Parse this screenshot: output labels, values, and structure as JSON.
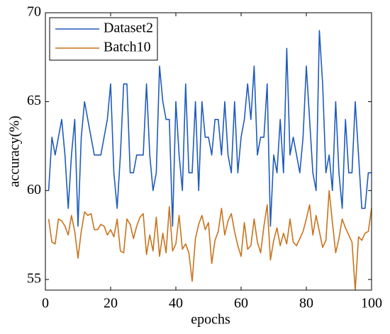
{
  "chart_data": {
    "type": "line",
    "xlabel": "epochs",
    "ylabel": "accuracy(%)",
    "x": [
      1,
      2,
      3,
      4,
      5,
      6,
      7,
      8,
      9,
      10,
      11,
      12,
      13,
      14,
      15,
      16,
      17,
      18,
      19,
      20,
      21,
      22,
      23,
      24,
      25,
      26,
      27,
      28,
      29,
      30,
      31,
      32,
      33,
      34,
      35,
      36,
      37,
      38,
      39,
      40,
      41,
      42,
      43,
      44,
      45,
      46,
      47,
      48,
      49,
      50,
      51,
      52,
      53,
      54,
      55,
      56,
      57,
      58,
      59,
      60,
      61,
      62,
      63,
      64,
      65,
      66,
      67,
      68,
      69,
      70,
      71,
      72,
      73,
      74,
      75,
      76,
      77,
      78,
      79,
      80,
      81,
      82,
      83,
      84,
      85,
      86,
      87,
      88,
      89,
      90,
      91,
      92,
      93,
      94,
      95,
      96,
      97,
      98,
      99,
      100
    ],
    "series": [
      {
        "name": "Dataset2",
        "color": "#1f5bbd",
        "values": [
          60,
          63,
          62,
          63,
          64,
          62,
          59,
          62,
          64,
          58,
          63,
          65,
          64,
          63,
          62,
          62,
          62,
          63,
          64,
          66,
          61,
          59,
          62,
          66,
          66,
          61,
          61,
          62,
          62,
          62,
          66,
          62,
          60,
          61,
          67,
          65,
          64,
          64,
          58,
          65,
          62,
          60,
          66,
          61,
          61,
          65,
          60,
          65,
          63,
          63,
          62,
          64,
          64,
          62,
          65,
          62,
          61,
          65,
          61,
          63,
          64,
          66,
          64,
          67,
          62,
          63,
          63,
          66,
          58,
          62,
          61,
          64,
          61,
          68,
          62,
          63,
          62,
          61,
          63,
          67,
          64,
          61,
          60,
          69,
          66,
          61,
          62,
          60,
          65,
          61,
          59,
          64,
          61,
          61,
          65,
          62,
          59,
          59,
          61,
          61
        ]
      },
      {
        "name": "Batch10",
        "color": "#c9731d",
        "values": [
          58.4,
          57.1,
          57.0,
          58.4,
          58.3,
          58.0,
          57.5,
          58.6,
          57.7,
          56.2,
          57.7,
          58.8,
          58.6,
          58.7,
          57.8,
          57.8,
          58.1,
          58.0,
          57.5,
          57.8,
          57.4,
          58.4,
          56.6,
          56.5,
          58.4,
          58.1,
          57.3,
          58.0,
          58.5,
          58.7,
          56.4,
          57.5,
          56.6,
          58.5,
          56.3,
          57.6,
          56.5,
          59.1,
          56.6,
          57.0,
          58.6,
          56.7,
          57.0,
          56.5,
          54.9,
          57.3,
          58.1,
          58.6,
          57.8,
          58.2,
          55.9,
          57.2,
          57.7,
          59.0,
          57.5,
          58.3,
          58.7,
          57.7,
          56.9,
          56.3,
          58.2,
          56.7,
          56.9,
          58.4,
          57.1,
          56.5,
          58.0,
          59.2,
          56.1,
          57.2,
          57.9,
          56.9,
          57.6,
          57.0,
          58.4,
          57.1,
          56.9,
          57.3,
          57.7,
          58.4,
          59.2,
          57.5,
          58.6,
          57.7,
          56.8,
          57.2,
          60.0,
          58.2,
          56.5,
          57.3,
          58.4,
          57.9,
          57.5,
          57.1,
          54.4,
          57.4,
          57.2,
          57.6,
          57.7,
          59.0
        ]
      }
    ],
    "xlim": [
      0,
      100
    ],
    "xticks": [
      0,
      20,
      40,
      60,
      80,
      100
    ],
    "ylim": [
      54.4,
      70
    ],
    "yticks": [
      55,
      60,
      65,
      70
    ],
    "legend": "upper left"
  }
}
